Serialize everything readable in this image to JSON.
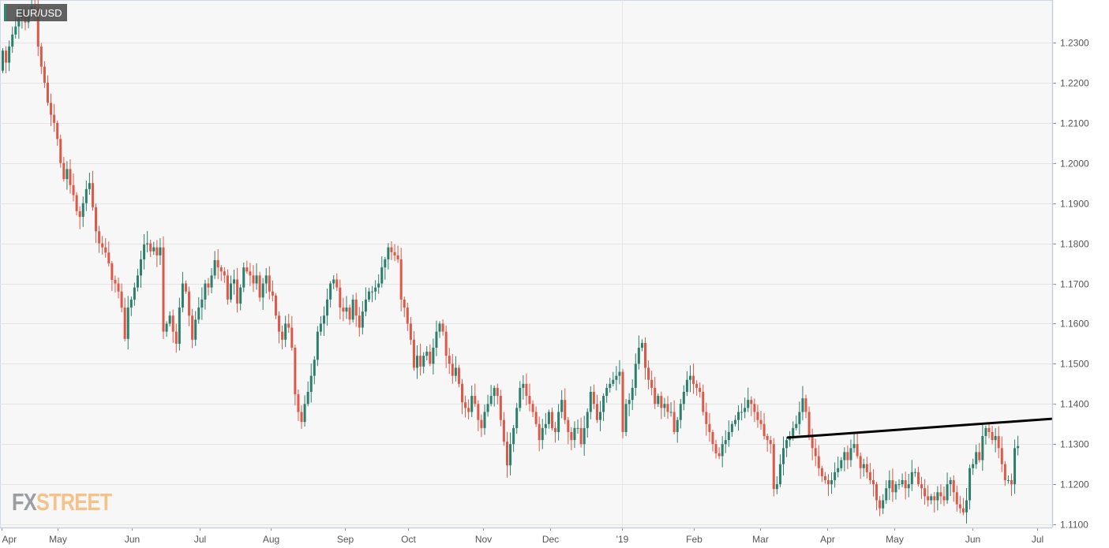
{
  "header": {
    "symbol": "EUR/USD"
  },
  "logo": {
    "part1": "FX",
    "part2": "STREET"
  },
  "colors": {
    "up": "#2b7f6b",
    "down": "#dd5847",
    "background": "#f7f7f7",
    "grid": "#e4e4e4",
    "axis": "#c8d0e0",
    "trendline": "#000000"
  },
  "chart_data": {
    "type": "candlestick",
    "title": "EUR/USD",
    "x_tick_labels": [
      "Apr",
      "May",
      "Jun",
      "Jul",
      "Aug",
      "Sep",
      "Oct",
      "Nov",
      "Dec",
      "'19",
      "Feb",
      "Mar",
      "Apr",
      "May",
      "Jun",
      "Jul"
    ],
    "y_tick_labels": [
      "1.1100",
      "1.1200",
      "1.1300",
      "1.1400",
      "1.1500",
      "1.1600",
      "1.1700",
      "1.1800",
      "1.1900",
      "1.2000",
      "1.2100",
      "1.2200",
      "1.2300"
    ],
    "ylim": [
      1.11,
      1.24
    ],
    "grid": true,
    "first_open": 1.223,
    "close": [
      1.228,
      1.225,
      1.229,
      1.232,
      1.234,
      1.236,
      1.238,
      1.235,
      1.237,
      1.239,
      1.2385,
      1.229,
      1.224,
      1.22,
      1.215,
      1.212,
      1.21,
      1.206,
      1.2,
      1.196,
      1.1985,
      1.1945,
      1.192,
      1.188,
      1.1866,
      1.19,
      1.1935,
      1.195,
      1.189,
      1.183,
      1.18,
      1.179,
      1.1777,
      1.175,
      1.1709,
      1.17,
      1.168,
      1.164,
      1.1562,
      1.164,
      1.166,
      1.169,
      1.172,
      1.176,
      1.1797,
      1.18,
      1.178,
      1.179,
      1.177,
      1.179,
      1.158,
      1.16,
      1.162,
      1.158,
      1.155,
      1.164,
      1.17,
      1.168,
      1.162,
      1.156,
      1.161,
      1.164,
      1.166,
      1.17,
      1.169,
      1.172,
      1.1758,
      1.174,
      1.173,
      1.172,
      1.166,
      1.17,
      1.171,
      1.165,
      1.169,
      1.174,
      1.173,
      1.172,
      1.17,
      1.172,
      1.1665,
      1.17,
      1.172,
      1.168,
      1.167,
      1.162,
      1.158,
      1.156,
      1.16,
      1.159,
      1.154,
      1.1424,
      1.138,
      1.1355,
      1.14,
      1.143,
      1.147,
      1.151,
      1.158,
      1.16,
      1.162,
      1.166,
      1.17,
      1.171,
      1.169,
      1.164,
      1.163,
      1.164,
      1.161,
      1.166,
      1.162,
      1.159,
      1.163,
      1.166,
      1.168,
      1.168,
      1.169,
      1.17,
      1.174,
      1.176,
      1.179,
      1.1778,
      1.177,
      1.176,
      1.166,
      1.164,
      1.16,
      1.156,
      1.149,
      1.152,
      1.1493,
      1.152,
      1.153,
      1.15,
      1.154,
      1.158,
      1.16,
      1.158,
      1.152,
      1.15,
      1.147,
      1.149,
      1.145,
      1.1404,
      1.139,
      1.138,
      1.142,
      1.14,
      1.136,
      1.134,
      1.138,
      1.14,
      1.142,
      1.144,
      1.142,
      1.136,
      1.1306,
      1.1247,
      1.13,
      1.134,
      1.139,
      1.144,
      1.145,
      1.142,
      1.14,
      1.138,
      1.135,
      1.131,
      1.134,
      1.135,
      1.138,
      1.134,
      1.133,
      1.138,
      1.141,
      1.136,
      1.133,
      1.131,
      1.134,
      1.134,
      1.13,
      1.134,
      1.138,
      1.143,
      1.14,
      1.136,
      1.138,
      1.142,
      1.144,
      1.145,
      1.146,
      1.147,
      1.148,
      1.133,
      1.14,
      1.141,
      1.144,
      1.15,
      1.154,
      1.1552,
      1.149,
      1.146,
      1.144,
      1.14,
      1.142,
      1.139,
      1.14,
      1.138,
      1.138,
      1.133,
      1.136,
      1.14,
      1.143,
      1.146,
      1.147,
      1.145,
      1.144,
      1.143,
      1.138,
      1.135,
      1.133,
      1.13,
      1.1277,
      1.127,
      1.13,
      1.131,
      1.133,
      1.135,
      1.136,
      1.138,
      1.138,
      1.139,
      1.141,
      1.14,
      1.138,
      1.136,
      1.135,
      1.132,
      1.131,
      1.13,
      1.1188,
      1.12,
      1.125,
      1.129,
      1.131,
      1.132,
      1.134,
      1.135,
      1.138,
      1.1414,
      1.138,
      1.132,
      1.129,
      1.127,
      1.124,
      1.122,
      1.121,
      1.12,
      1.121,
      1.123,
      1.124,
      1.126,
      1.128,
      1.126,
      1.129,
      1.13,
      1.127,
      1.124,
      1.125,
      1.123,
      1.121,
      1.12,
      1.116,
      1.114,
      1.116,
      1.119,
      1.121,
      1.118,
      1.12,
      1.12,
      1.121,
      1.119,
      1.12,
      1.123,
      1.123,
      1.12,
      1.119,
      1.117,
      1.116,
      1.117,
      1.116,
      1.118,
      1.117,
      1.116,
      1.12,
      1.121,
      1.118,
      1.115,
      1.114,
      1.113,
      1.116,
      1.124,
      1.125,
      1.128,
      1.126,
      1.132,
      1.134,
      1.133,
      1.131,
      1.132,
      1.129,
      1.125,
      1.121,
      1.121,
      1.12,
      1.129,
      1.1295
    ],
    "trendline": {
      "start_price": 1.1316,
      "end_price": 1.1363,
      "start": "mid-Mar 2019",
      "end": "right edge"
    }
  }
}
